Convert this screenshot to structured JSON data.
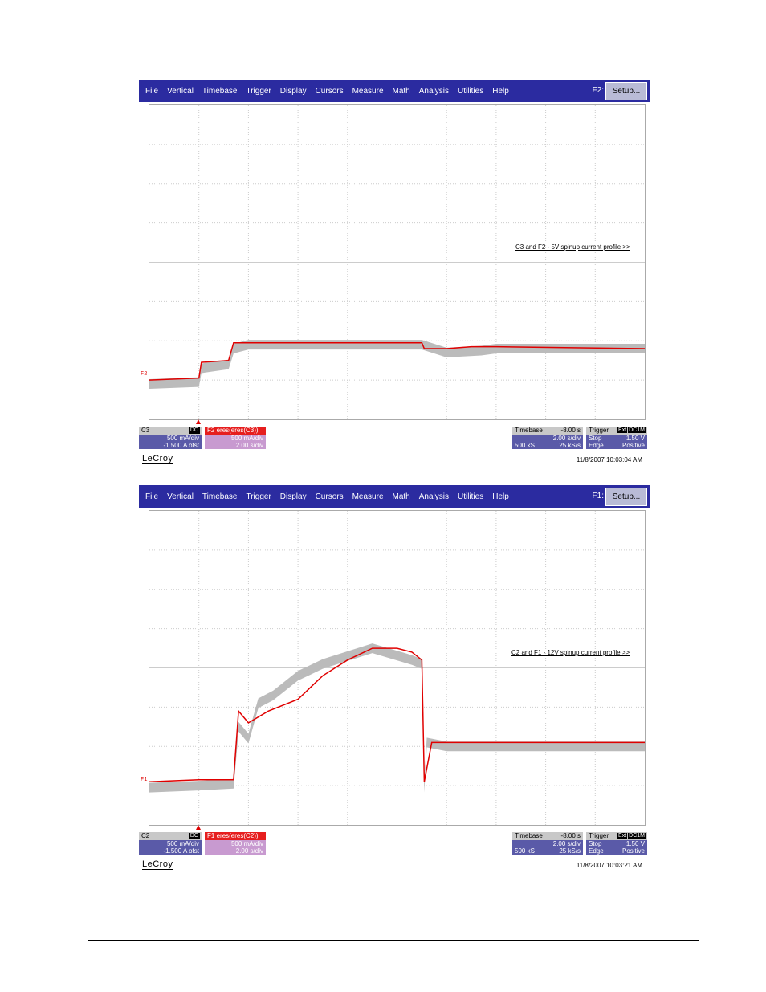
{
  "menu": [
    "File",
    "Vertical",
    "Timebase",
    "Trigger",
    "Display",
    "Cursors",
    "Measure",
    "Math",
    "Analysis",
    "Utilities",
    "Help"
  ],
  "colors": {
    "menubar": "#2b2ba0",
    "gray_trace": "#bbbbbb",
    "red_trace": "#e00000",
    "grid_line": "#cccccc"
  },
  "scope1": {
    "fn_label": "F2:",
    "setup_label": "Setup...",
    "trace_marker": "F2",
    "annotation": "C3 and F2 - 5V spinup current profile >>",
    "channel": {
      "name": "C3",
      "coupling": "DC",
      "vdiv": "500 mA/div",
      "offset": "-1.500 A ofst"
    },
    "math": {
      "name": "F2",
      "label": "eres(eres(C3))",
      "vdiv": "500 mA/div",
      "tdiv": "2.00 s/div"
    },
    "timebase": {
      "label": "Timebase",
      "delay": "-8.00 s",
      "tdiv": "2.00 s/div",
      "samples": "500 kS",
      "rate": "25 kS/s"
    },
    "trigger": {
      "label": "Trigger",
      "source": "Ext",
      "coupling": "DC1M",
      "mode": "Stop",
      "level": "1.50 V",
      "type": "Edge",
      "slope": "Positive"
    },
    "logo": "LeCroy",
    "timestamp": "11/8/2007 10:03:04 AM"
  },
  "scope2": {
    "fn_label": "F1:",
    "setup_label": "Setup...",
    "trace_marker": "F1",
    "annotation": "C2 and F1 - 12V spinup current profile >>",
    "channel": {
      "name": "C2",
      "coupling": "DC",
      "vdiv": "500 mA/div",
      "offset": "-1.500 A ofst"
    },
    "math": {
      "name": "F1",
      "label": "eres(eres(C2))",
      "vdiv": "500 mA/div",
      "tdiv": "2.00 s/div"
    },
    "timebase": {
      "label": "Timebase",
      "delay": "-8.00 s",
      "tdiv": "2.00 s/div",
      "samples": "500 kS",
      "rate": "25 kS/s"
    },
    "trigger": {
      "label": "Trigger",
      "source": "Ext",
      "coupling": "DC1M",
      "mode": "Stop",
      "level": "1.50 V",
      "type": "Edge",
      "slope": "Positive"
    },
    "logo": "LeCroy",
    "timestamp": "11/8/2007 10:03:21 AM"
  },
  "chart_data": [
    {
      "type": "line",
      "divisions": {
        "x": 10,
        "y": 8
      },
      "series": [
        {
          "values_div": [
            [
              0,
              0.9
            ],
            [
              1,
              0.95
            ],
            [
              1.05,
              1.3
            ],
            [
              1.6,
              1.4
            ],
            [
              1.7,
              1.8
            ],
            [
              2,
              1.9
            ],
            [
              3,
              1.9
            ],
            [
              4,
              1.9
            ],
            [
              5,
              1.9
            ],
            [
              5.5,
              1.9
            ],
            [
              6,
              1.7
            ],
            [
              6.7,
              1.75
            ],
            [
              7,
              1.8
            ],
            [
              8,
              1.8
            ],
            [
              9,
              1.8
            ],
            [
              10,
              1.8
            ]
          ]
        },
        {
          "values_div": [
            [
              0,
              1.0
            ],
            [
              1,
              1.05
            ],
            [
              1.05,
              1.45
            ],
            [
              1.6,
              1.5
            ],
            [
              1.7,
              1.95
            ],
            [
              2,
              1.95
            ],
            [
              4,
              1.95
            ],
            [
              5.5,
              1.95
            ],
            [
              5.55,
              1.8
            ],
            [
              6,
              1.8
            ],
            [
              6.5,
              1.85
            ],
            [
              7,
              1.85
            ],
            [
              10,
              1.8
            ]
          ]
        }
      ]
    },
    {
      "type": "line",
      "divisions": {
        "x": 10,
        "y": 8
      },
      "series": [
        {
          "values_div": [
            [
              0,
              0.95
            ],
            [
              1,
              1.0
            ],
            [
              1.7,
              1.05
            ],
            [
              1.8,
              2.5
            ],
            [
              2,
              2.2
            ],
            [
              2.2,
              3.1
            ],
            [
              2.5,
              3.3
            ],
            [
              3,
              3.8
            ],
            [
              3.5,
              4.1
            ],
            [
              4.5,
              4.5
            ],
            [
              5.3,
              4.2
            ],
            [
              5.5,
              4.1
            ],
            [
              5.55,
              0.95
            ],
            [
              5.6,
              2.1
            ],
            [
              6,
              2.0
            ],
            [
              7,
              2.0
            ],
            [
              10,
              2.0
            ]
          ]
        },
        {
          "values_div": [
            [
              0,
              1.1
            ],
            [
              1,
              1.15
            ],
            [
              1.7,
              1.15
            ],
            [
              1.8,
              2.9
            ],
            [
              2,
              2.6
            ],
            [
              2.4,
              2.9
            ],
            [
              3,
              3.2
            ],
            [
              3.5,
              3.8
            ],
            [
              4,
              4.2
            ],
            [
              4.5,
              4.5
            ],
            [
              5,
              4.5
            ],
            [
              5.3,
              4.4
            ],
            [
              5.5,
              4.2
            ],
            [
              5.55,
              1.1
            ],
            [
              5.7,
              2.1
            ],
            [
              6,
              2.1
            ],
            [
              8,
              2.1
            ],
            [
              10,
              2.1
            ]
          ]
        }
      ]
    }
  ]
}
